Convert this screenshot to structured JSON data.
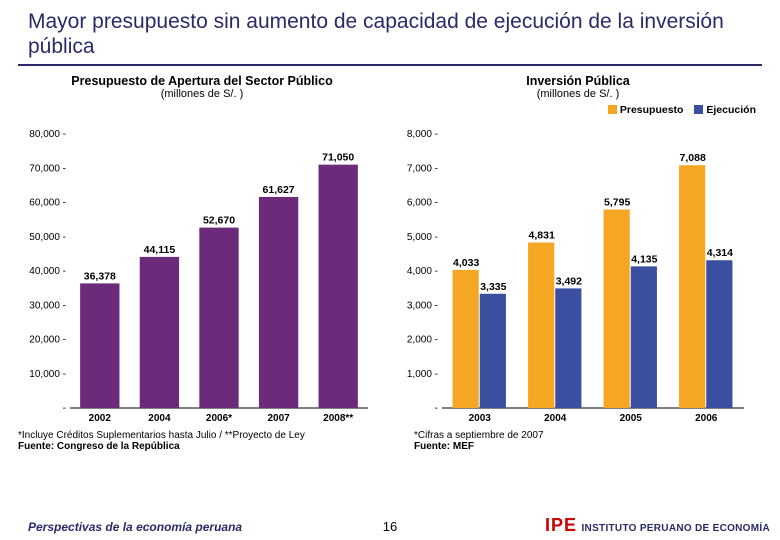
{
  "title": "Mayor presupuesto sin aumento de capacidad de ejecución de la inversión pública",
  "left_chart": {
    "type": "bar",
    "title": "Presupuesto de Apertura del Sector Público",
    "subtitle": "(millones de S/. )",
    "categories": [
      "2002",
      "2004",
      "2006*",
      "2007",
      "2008**"
    ],
    "values": [
      36378,
      44115,
      52670,
      61627,
      71050
    ],
    "value_labels": [
      "36,378",
      "44,115",
      "52,670",
      "61,627",
      "71,050"
    ],
    "bar_color": "#6b2a7a",
    "ylim": [
      0,
      80000
    ],
    "ytick_step": 10000,
    "ytick_labels": [
      "-",
      "10,000 -",
      "20,000 -",
      "30,000 -",
      "40,000 -",
      "50,000 -",
      "60,000 -",
      "70,000 -",
      "80,000 -"
    ],
    "footnote": "*Incluye Créditos Suplementarios hasta Julio / **Proyecto de Ley",
    "source": "Fuente: Congreso de la República"
  },
  "right_chart": {
    "type": "grouped-bar",
    "title": "Inversión Pública",
    "subtitle": "(millones de S/. )",
    "categories": [
      "2003",
      "2004",
      "2005",
      "2006"
    ],
    "series": [
      {
        "name": "Presupuesto",
        "color": "#f5a623",
        "values": [
          4033,
          4831,
          5795,
          7088
        ],
        "labels": [
          "4,033",
          "4,831",
          "5,795",
          "7,088"
        ]
      },
      {
        "name": "Ejecución",
        "color": "#3a4fa0",
        "values": [
          3335,
          3492,
          4135,
          4314
        ],
        "labels": [
          "3,335",
          "3,492",
          "4,135",
          "4,314"
        ]
      }
    ],
    "ylim": [
      0,
      8000
    ],
    "ytick_step": 1000,
    "ytick_labels": [
      "-",
      "1,000 -",
      "2,000 -",
      "3,000 -",
      "4,000 -",
      "5,000 -",
      "6,000 -",
      "7,000 -",
      "8,000 -"
    ],
    "footnote": "*Cifras a septiembre de 2007",
    "source": "Fuente: MEF"
  },
  "footer": {
    "left": "Perspectivas de la economía peruana",
    "page": "16",
    "logo_red": "IPE",
    "logo_blue": "INSTITUTO PERUANO DE ECONOMÍA"
  }
}
